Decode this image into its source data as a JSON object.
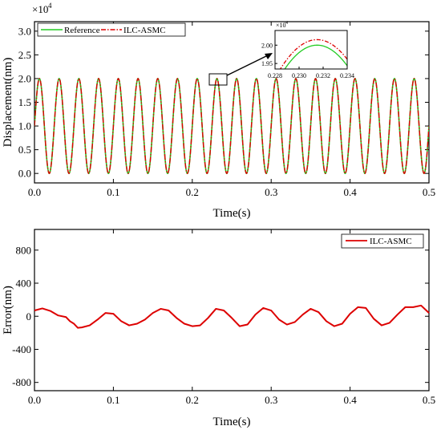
{
  "chart_data": [
    {
      "type": "line",
      "xlabel": "Time(s)",
      "ylabel": "Displacement(nm)",
      "y_multiplier_label": "×10",
      "y_multiplier_exp": "4",
      "xlim": [
        0.0,
        0.5
      ],
      "ylim": [
        -0.2,
        3.2
      ],
      "xticks": [
        "0.0",
        "0.1",
        "0.2",
        "0.3",
        "0.4",
        "0.5"
      ],
      "yticks": [
        "0.0",
        "0.5",
        "1.0",
        "1.5",
        "2.0",
        "2.5",
        "3.0"
      ],
      "legend": "top-left",
      "grid": false,
      "series": [
        {
          "name": "Reference",
          "color": "#22cc22",
          "style": "solid",
          "description_values": {
            "amplitude": 1.0,
            "offset": 1.0,
            "period": 0.025
          }
        },
        {
          "name": "ILC-ASMC",
          "color": "#dd0000",
          "style": "dash-dot",
          "description_values": {
            "amplitude": 1.0,
            "offset": 1.0,
            "period": 0.025
          }
        }
      ],
      "x": [
        0.0,
        0.0125,
        0.025,
        0.0375,
        0.05,
        0.0625,
        0.075,
        0.0875,
        0.1,
        0.1125,
        0.125,
        0.1375,
        0.15,
        0.1625,
        0.175,
        0.1875,
        0.2,
        0.2125,
        0.225,
        0.2375,
        0.25,
        0.2625,
        0.275,
        0.2875,
        0.3,
        0.3125,
        0.325,
        0.3375,
        0.35,
        0.3625,
        0.375,
        0.3875,
        0.4,
        0.4125,
        0.425,
        0.4375,
        0.45,
        0.4625,
        0.475,
        0.4875,
        0.5
      ],
      "inset": {
        "xlim": [
          0.228,
          0.234
        ],
        "ylim": [
          1.935,
          2.04
        ],
        "xticks": [
          "0.228",
          "0.230",
          "0.232",
          "0.234"
        ],
        "yticks": [
          "1.95",
          "2.00"
        ],
        "y_multiplier_label": "×10",
        "y_multiplier_exp": "4",
        "series": [
          {
            "name": "Reference",
            "peak_x": 0.2315,
            "peak_y": 2.0
          },
          {
            "name": "ILC-ASMC",
            "peak_x": 0.2315,
            "peak_y": 2.015
          }
        ]
      }
    },
    {
      "type": "line",
      "xlabel": "Time(s)",
      "ylabel": "Error(nm)",
      "xlim": [
        0.0,
        0.5
      ],
      "ylim": [
        -900,
        1050
      ],
      "xticks": [
        "0.0",
        "0.1",
        "0.2",
        "0.3",
        "0.4",
        "0.5"
      ],
      "yticks": [
        "-800",
        "-400",
        "0",
        "400",
        "800"
      ],
      "legend": "top-right",
      "grid": false,
      "series": [
        {
          "name": "ILC-ASMC",
          "color": "#dd0000",
          "x": [
            0.0,
            0.01,
            0.02,
            0.03,
            0.04,
            0.045,
            0.05,
            0.055,
            0.06,
            0.07,
            0.08,
            0.09,
            0.1,
            0.11,
            0.12,
            0.13,
            0.14,
            0.15,
            0.16,
            0.17,
            0.18,
            0.19,
            0.2,
            0.21,
            0.22,
            0.23,
            0.24,
            0.25,
            0.26,
            0.27,
            0.28,
            0.29,
            0.3,
            0.31,
            0.32,
            0.33,
            0.34,
            0.35,
            0.36,
            0.37,
            0.38,
            0.39,
            0.4,
            0.41,
            0.42,
            0.43,
            0.44,
            0.45,
            0.46,
            0.47,
            0.48,
            0.49,
            0.5
          ],
          "values": [
            70,
            95,
            65,
            10,
            -10,
            -60,
            -90,
            -140,
            -135,
            -110,
            -40,
            40,
            30,
            -60,
            -110,
            -90,
            -40,
            40,
            90,
            70,
            -20,
            -90,
            -120,
            -110,
            -20,
            90,
            70,
            -20,
            -120,
            -100,
            20,
            100,
            70,
            -40,
            -100,
            -70,
            20,
            90,
            50,
            -60,
            -120,
            -90,
            30,
            110,
            100,
            -30,
            -110,
            -80,
            20,
            110,
            110,
            130,
            40
          ]
        }
      ]
    }
  ]
}
